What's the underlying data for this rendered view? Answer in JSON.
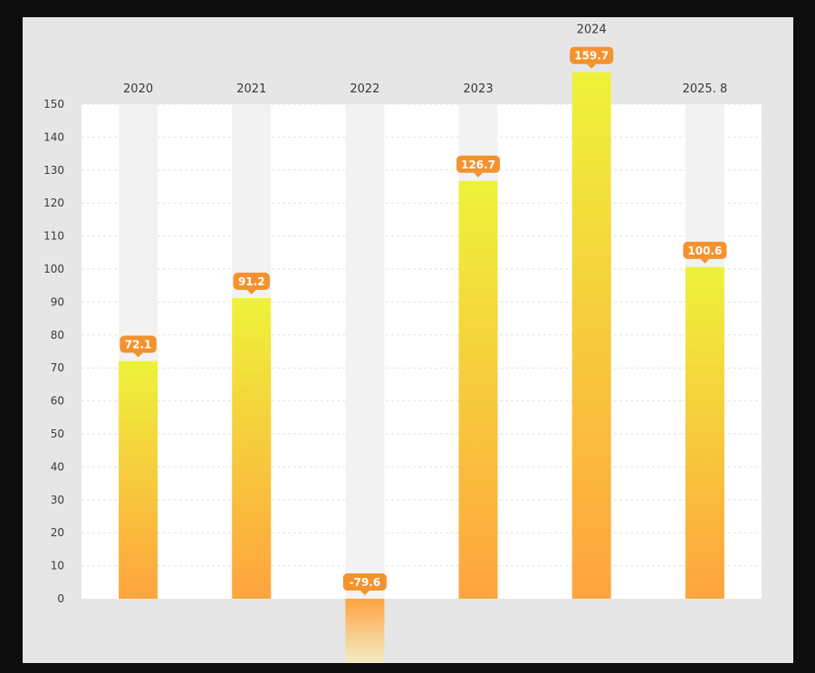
{
  "chart_data": {
    "type": "bar",
    "categories": [
      "2020",
      "2021",
      "2022",
      "2023",
      "2024",
      "2025. 8"
    ],
    "values": [
      72.1,
      91.2,
      -79.6,
      126.7,
      159.7,
      100.6
    ],
    "data_labels": [
      "72.1",
      "91.2",
      "-79.6",
      "126.7",
      "159.7",
      "100.6"
    ],
    "y_ticks": [
      0,
      10,
      20,
      30,
      40,
      50,
      60,
      70,
      80,
      90,
      100,
      110,
      120,
      130,
      140,
      150
    ],
    "ylim": [
      0,
      150
    ],
    "grid": true,
    "colors": {
      "bar_top": "#eef23a",
      "bar_bottom": "#ffa43e",
      "label_bg": "#f4922e",
      "track": "#f2f2f2",
      "plot_bg": "#ffffff",
      "grid": "#e2e2e2"
    }
  }
}
